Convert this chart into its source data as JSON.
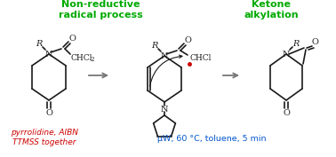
{
  "bg_color": "#ffffff",
  "green_label1": "Non-reductive\nradical process",
  "green_label2": "Ketone\nalkylation",
  "red_label": "pyrrolidine, AIBN\nTTMSS together",
  "blue_label": "μW, 60 °C, toluene, 5 min",
  "green_color": "#00aa00",
  "red_color": "#cc0000",
  "blue_color": "#0055cc",
  "black_color": "#1a1a1a",
  "arrow_color": "#777777",
  "radical_color": "#cc0000",
  "figsize": [
    3.78,
    1.77
  ],
  "dpi": 100
}
